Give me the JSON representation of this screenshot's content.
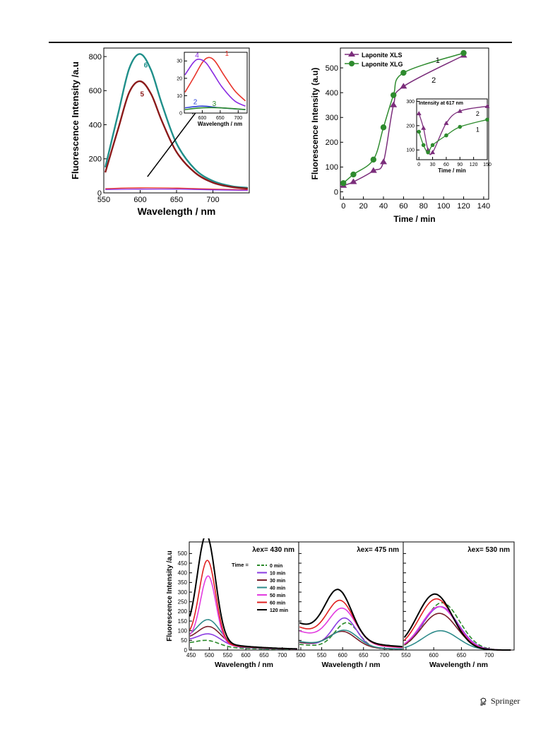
{
  "colors": {
    "teal": "#1f8f8a",
    "darkred": "#8b1a1a",
    "red": "#e8332a",
    "purple": "#8a2be2",
    "blue": "#2b3fd6",
    "green": "#2a8a2a",
    "black": "#000000",
    "pink": "#e23ce0",
    "plum": "#7b2d7b",
    "xlg": "#2e8b2e"
  },
  "footer": {
    "publisher": "Springer"
  },
  "chart_data": [
    {
      "id": "fig-left-main",
      "type": "line",
      "xlabel": "Wavelength / nm",
      "ylabel": "Fluorescence Intensity /a.u",
      "xlim": [
        550,
        750
      ],
      "ylim": [
        0,
        850
      ],
      "xticks": [
        "550",
        "600",
        "650",
        "700"
      ],
      "yticks": [
        "0",
        "200",
        "400",
        "600",
        "800"
      ],
      "series": [
        {
          "name": "6",
          "x": [
            552,
            570,
            585,
            600,
            615,
            630,
            650,
            675,
            700,
            725,
            748
          ],
          "values": [
            150,
            470,
            730,
            815,
            720,
            520,
            290,
            140,
            70,
            40,
            30
          ]
        },
        {
          "name": "5",
          "x": [
            552,
            570,
            585,
            600,
            615,
            630,
            650,
            675,
            700,
            725,
            748
          ],
          "values": [
            120,
            380,
            590,
            655,
            580,
            420,
            240,
            120,
            60,
            35,
            25
          ]
        },
        {
          "name": "",
          "x": [
            552,
            600,
            650,
            700,
            748
          ],
          "values": [
            25,
            30,
            28,
            22,
            18
          ]
        },
        {
          "name": "",
          "x": [
            552,
            600,
            650,
            700,
            748
          ],
          "values": [
            20,
            22,
            22,
            18,
            15
          ]
        }
      ]
    },
    {
      "id": "fig-left-inset",
      "type": "line",
      "xlabel": "Wavelength / nm",
      "ylabel": "",
      "xlim": [
        550,
        725
      ],
      "ylim": [
        0,
        35
      ],
      "xticks": [
        "600",
        "650",
        "700"
      ],
      "yticks": [
        "0",
        "10",
        "20",
        "30"
      ],
      "series": [
        {
          "name": "1",
          "x": [
            552,
            575,
            600,
            617,
            635,
            660,
            690,
            720
          ],
          "values": [
            12,
            20,
            29,
            32,
            30,
            22,
            13,
            7
          ]
        },
        {
          "name": "4",
          "x": [
            552,
            575,
            590,
            610,
            630,
            655,
            690,
            720
          ],
          "values": [
            22,
            29,
            31,
            29,
            23,
            15,
            7,
            4
          ]
        },
        {
          "name": "2",
          "x": [
            552,
            600,
            650,
            720
          ],
          "values": [
            3,
            4,
            3,
            2
          ]
        },
        {
          "name": "3",
          "x": [
            552,
            600,
            650,
            720
          ],
          "values": [
            2,
            3,
            3,
            2
          ]
        }
      ]
    },
    {
      "id": "fig-right-main",
      "type": "line",
      "xlabel": "Time / min",
      "ylabel": "Fluorescence Intensity (a.u)",
      "xlim": [
        -3,
        145
      ],
      "ylim": [
        -30,
        580
      ],
      "xticks": [
        "0",
        "20",
        "40",
        "60",
        "80",
        "100",
        "120",
        "140"
      ],
      "yticks": [
        "0",
        "100",
        "200",
        "300",
        "400",
        "500"
      ],
      "legend": "top-left",
      "series": [
        {
          "name": "Laponite XLS",
          "label": "2",
          "x": [
            0,
            10,
            30,
            40,
            50,
            60,
            120
          ],
          "values": [
            25,
            40,
            85,
            120,
            350,
            425,
            550
          ]
        },
        {
          "name": "Laponite XLG",
          "label": "1",
          "x": [
            0,
            10,
            30,
            40,
            50,
            60,
            120
          ],
          "values": [
            35,
            70,
            130,
            260,
            390,
            480,
            560
          ]
        }
      ]
    },
    {
      "id": "fig-right-inset",
      "type": "line",
      "title": "Intensity at 617 nm",
      "xlabel": "Time / min",
      "xlim": [
        -5,
        150
      ],
      "ylim": [
        60,
        310
      ],
      "xticks": [
        "0",
        "30",
        "60",
        "90",
        "120",
        "150"
      ],
      "yticks": [
        "100",
        "200",
        "300"
      ],
      "series": [
        {
          "label": "2",
          "x": [
            0,
            10,
            20,
            30,
            60,
            90,
            150
          ],
          "values": [
            250,
            190,
            100,
            90,
            210,
            260,
            280
          ]
        },
        {
          "label": "1",
          "x": [
            0,
            10,
            20,
            30,
            60,
            90,
            150
          ],
          "values": [
            175,
            120,
            90,
            120,
            160,
            195,
            225
          ]
        }
      ]
    },
    {
      "id": "fig-bottom",
      "type": "line",
      "ylabel": "Fluorescence Intensity /a.u",
      "legend_title": "Time =",
      "legend_items": [
        "0 min",
        "10 min",
        "30 min",
        "40 min",
        "50 min",
        "60 min",
        "120 min"
      ],
      "yticks": [
        "0",
        "50",
        "100",
        "150",
        "200",
        "250",
        "300",
        "350",
        "400",
        "450",
        "500"
      ],
      "ylim": [
        0,
        560
      ],
      "panels": [
        {
          "label": "λex= 430 nm",
          "xlabel": "Wavelength / nm",
          "xlim": [
            445,
            745
          ],
          "xticks": [
            "450",
            "500",
            "550",
            "600",
            "650",
            "700"
          ],
          "peak": [
            495,
            500,
            500,
            498,
            497,
            495,
            492
          ],
          "height": [
            30,
            55,
            90,
            125,
            345,
            425,
            550
          ],
          "width": [
            45,
            45,
            45,
            45,
            30,
            32,
            35
          ],
          "base": [
            30,
            45,
            50,
            50,
            60,
            60,
            70
          ]
        },
        {
          "label": "λex= 475 nm",
          "xlabel": "Wavelength / nm",
          "xlim": [
            495,
            745
          ],
          "xticks": [
            "500",
            "550",
            "600",
            "650",
            "700"
          ],
          "peak": [
            610,
            605,
            600,
            605,
            600,
            595,
            590
          ],
          "height": [
            130,
            150,
            80,
            85,
            175,
            205,
            250
          ],
          "width": [
            40,
            40,
            45,
            45,
            45,
            45,
            45
          ],
          "base": [
            30,
            40,
            40,
            45,
            100,
            120,
            140
          ]
        },
        {
          "label": "λex= 530 nm",
          "xlabel": "Wavelength / nm",
          "xlim": [
            545,
            745
          ],
          "xticks": [
            "550",
            "600",
            "650",
            "700"
          ],
          "peak": [
            615,
            612,
            610,
            612,
            610,
            605,
            602
          ],
          "height": [
            245,
            225,
            190,
            100,
            225,
            265,
            290
          ],
          "width": [
            45,
            45,
            45,
            45,
            45,
            45,
            45
          ],
          "base": [
            0,
            0,
            0,
            0,
            0,
            0,
            0
          ]
        }
      ]
    }
  ]
}
